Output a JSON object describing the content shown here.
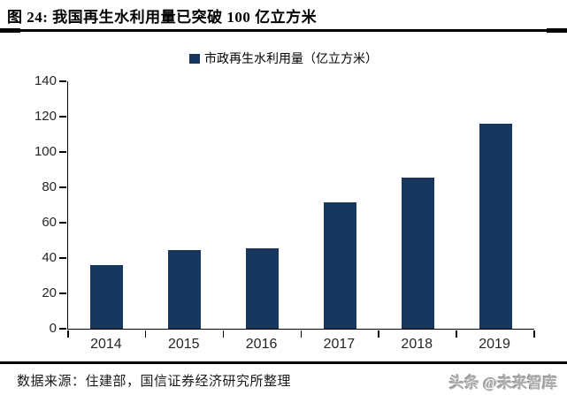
{
  "header": {
    "title": "图 24:  我国再生水利用量已突破 100 亿立方米"
  },
  "legend": {
    "label": "市政再生水利用量（亿立方米）"
  },
  "chart_data": {
    "type": "bar",
    "title": "图 24: 我国再生水利用量已突破 100 亿立方米",
    "categories": [
      "2014",
      "2015",
      "2016",
      "2017",
      "2018",
      "2019"
    ],
    "values": [
      36,
      44.5,
      45.3,
      71.3,
      85.5,
      116
    ],
    "series": [
      {
        "name": "市政再生水利用量（亿立方米）",
        "values": [
          36,
          44.5,
          45.3,
          71.3,
          85.5,
          116
        ]
      }
    ],
    "xlabel": "",
    "ylabel": "",
    "ylim": [
      0,
      140
    ],
    "yticks": [
      0,
      20,
      40,
      60,
      80,
      100,
      120,
      140
    ],
    "grid": false,
    "legend_position": "top",
    "bar_color": "#17375E"
  },
  "footer": {
    "source": "数据来源：住建部，国信证券经济研究所整理",
    "watermark": "头条 @未来智库"
  },
  "colors": {
    "bar": "#17375E",
    "axis": "#000000",
    "tick_text": "#262626",
    "watermark": "#AEAEAE",
    "background": "#FFFFFF"
  }
}
